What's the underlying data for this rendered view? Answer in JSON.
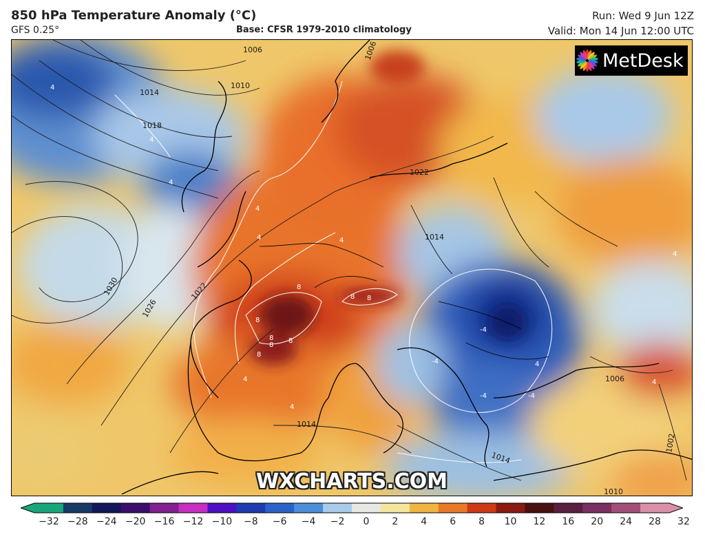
{
  "header": {
    "title": "850 hPa Temperature Anomaly (°C)",
    "model": "GFS 0.25°",
    "base": "Base: CFSR 1979-2010 climatology",
    "run": "Run: Wed 9 Jun 12Z",
    "valid": "Valid: Mon 14 Jun 12:00 UTC"
  },
  "logo": {
    "text": "MetDesk",
    "icon": "metdesk-flower-logo"
  },
  "watermark": "WXCHARTS.COM",
  "isobar_labels": [
    "1006",
    "1010",
    "1014",
    "1018",
    "1022",
    "1026",
    "1030",
    "1014",
    "1022",
    "1006",
    "1006",
    "1010",
    "1014",
    "1002",
    "1014"
  ],
  "anomaly_labels": [
    "4",
    "4",
    "4",
    "4",
    "4",
    "4",
    "4",
    "4",
    "8",
    "8",
    "8",
    "8",
    "8",
    "8",
    "8",
    "8",
    "4",
    "4",
    "4",
    "-4",
    "-4",
    "-4",
    "-4"
  ],
  "colorbar": {
    "ticks": [
      "−32",
      "−28",
      "−24",
      "−20",
      "−16",
      "−12",
      "−10",
      "−8",
      "−6",
      "−4",
      "−2",
      "0",
      "2",
      "4",
      "6",
      "8",
      "10",
      "12",
      "16",
      "20",
      "24",
      "28",
      "32"
    ],
    "colors": [
      "#1aa67a",
      "#173a66",
      "#13185a",
      "#3b0f6b",
      "#82208f",
      "#c62fc1",
      "#4d10c0",
      "#1f3bb0",
      "#2a62c8",
      "#4d8ed8",
      "#a9cbea",
      "#e8e8e4",
      "#f4e6a0",
      "#efb542",
      "#e8792a",
      "#cc3a18",
      "#8a1a14",
      "#4a1010",
      "#5a2040",
      "#7a3060",
      "#a05078",
      "#d890a8"
    ]
  }
}
